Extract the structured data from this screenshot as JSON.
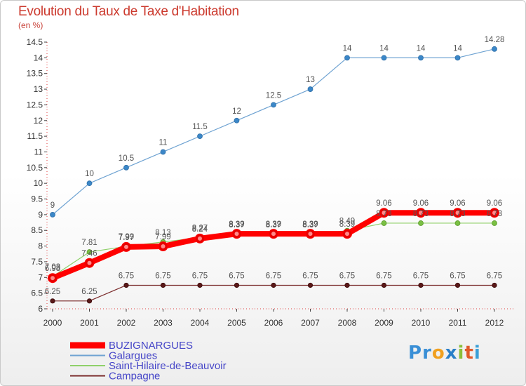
{
  "title": "Evolution du Taux de Taxe d'Habitation",
  "subtitle": "(en %)",
  "logo_letters": [
    {
      "ch": "P",
      "color": "#3a8fd6"
    },
    {
      "ch": "r",
      "color": "#3a8fd6"
    },
    {
      "ch": "o",
      "color": "#f0a020"
    },
    {
      "ch": "x",
      "color": "#2a7fc8"
    },
    {
      "ch": "i",
      "color": "#8bbf3a"
    },
    {
      "ch": "t",
      "color": "#e05a2a"
    },
    {
      "ch": "i",
      "color": "#3a9fd6"
    }
  ],
  "chart_data": {
    "type": "line",
    "x": [
      "2000",
      "2001",
      "2002",
      "2003",
      "2004",
      "2005",
      "2006",
      "2007",
      "2008",
      "2009",
      "2010",
      "2011",
      "2012"
    ],
    "ylim": [
      6,
      14.5
    ],
    "yticks": [
      "6",
      "6.5",
      "7",
      "7.5",
      "8",
      "8.5",
      "9",
      "9.5",
      "10",
      "10.5",
      "11",
      "11.5",
      "12",
      "12.5",
      "13",
      "13.5",
      "14",
      "14.5"
    ],
    "ytick_values": [
      6,
      6.5,
      7,
      7.5,
      8,
      8.5,
      9,
      9.5,
      10,
      10.5,
      11,
      11.5,
      12,
      12.5,
      13,
      13.5,
      14,
      14.5
    ],
    "grid": false,
    "legend_position": "bottom-left",
    "series": [
      {
        "name": "Galargues",
        "color": "#6fa3d2",
        "marker_color": "#3b87c8",
        "values": [
          9,
          10,
          10.5,
          11,
          11.5,
          12,
          12.5,
          13,
          14,
          14,
          14,
          14,
          14.28
        ],
        "labels": [
          "9",
          "10",
          "10.5",
          "11",
          "11.5",
          "12",
          "12.5",
          "13",
          "14",
          "14",
          "14",
          "14",
          "14.28"
        ]
      },
      {
        "name": "Saint-Hilaire-de-Beauvoir",
        "color": "#8fd06a",
        "marker_color": "#7ac043",
        "values": [
          7.03,
          7.81,
          7.99,
          8.13,
          8.27,
          8.37,
          8.37,
          8.37,
          8.49,
          8.73,
          8.73,
          8.73,
          8.73
        ],
        "labels": [
          "7.03",
          "7.81",
          "7.99",
          "8.13",
          "8.27",
          "8.37",
          "8.37",
          "8.37",
          "8.49",
          "8.73",
          "8.73",
          "8.73",
          "8.73"
        ]
      },
      {
        "name": "BUZIGNARGUES",
        "color": "#ff0000",
        "marker_color": "#e80000",
        "values": [
          6.98,
          7.46,
          7.97,
          7.99,
          8.24,
          8.39,
          8.39,
          8.39,
          8.39,
          9.06,
          9.06,
          9.06,
          9.06
        ],
        "labels": [
          "6.98",
          "7.46",
          "7.97",
          "7.99",
          "8.24",
          "8.39",
          "8.39",
          "8.39",
          "8.39",
          "9.06",
          "9.06",
          "9.06",
          "9.06"
        ]
      },
      {
        "name": "Campagne",
        "color": "#7a2a2a",
        "marker_color": "#5a1818",
        "values": [
          6.25,
          6.25,
          6.75,
          6.75,
          6.75,
          6.75,
          6.75,
          6.75,
          6.75,
          6.75,
          6.75,
          6.75,
          6.75
        ],
        "labels": [
          "6.25",
          "6.25",
          "6.75",
          "6.75",
          "6.75",
          "6.75",
          "6.75",
          "6.75",
          "6.75",
          "6.75",
          "6.75",
          "6.75",
          "6.75"
        ]
      }
    ],
    "legend": [
      {
        "name": "BUZIGNARGUES",
        "color": "#ff0000",
        "text_color": "#4646c8"
      },
      {
        "name": "Galargues",
        "color": "#6fa3d2",
        "text_color": "#4646c8"
      },
      {
        "name": "Saint-Hilaire-de-Beauvoir",
        "color": "#8fd06a",
        "text_color": "#4646c8"
      },
      {
        "name": "Campagne",
        "color": "#7a2a2a",
        "text_color": "#4646c8"
      }
    ]
  }
}
